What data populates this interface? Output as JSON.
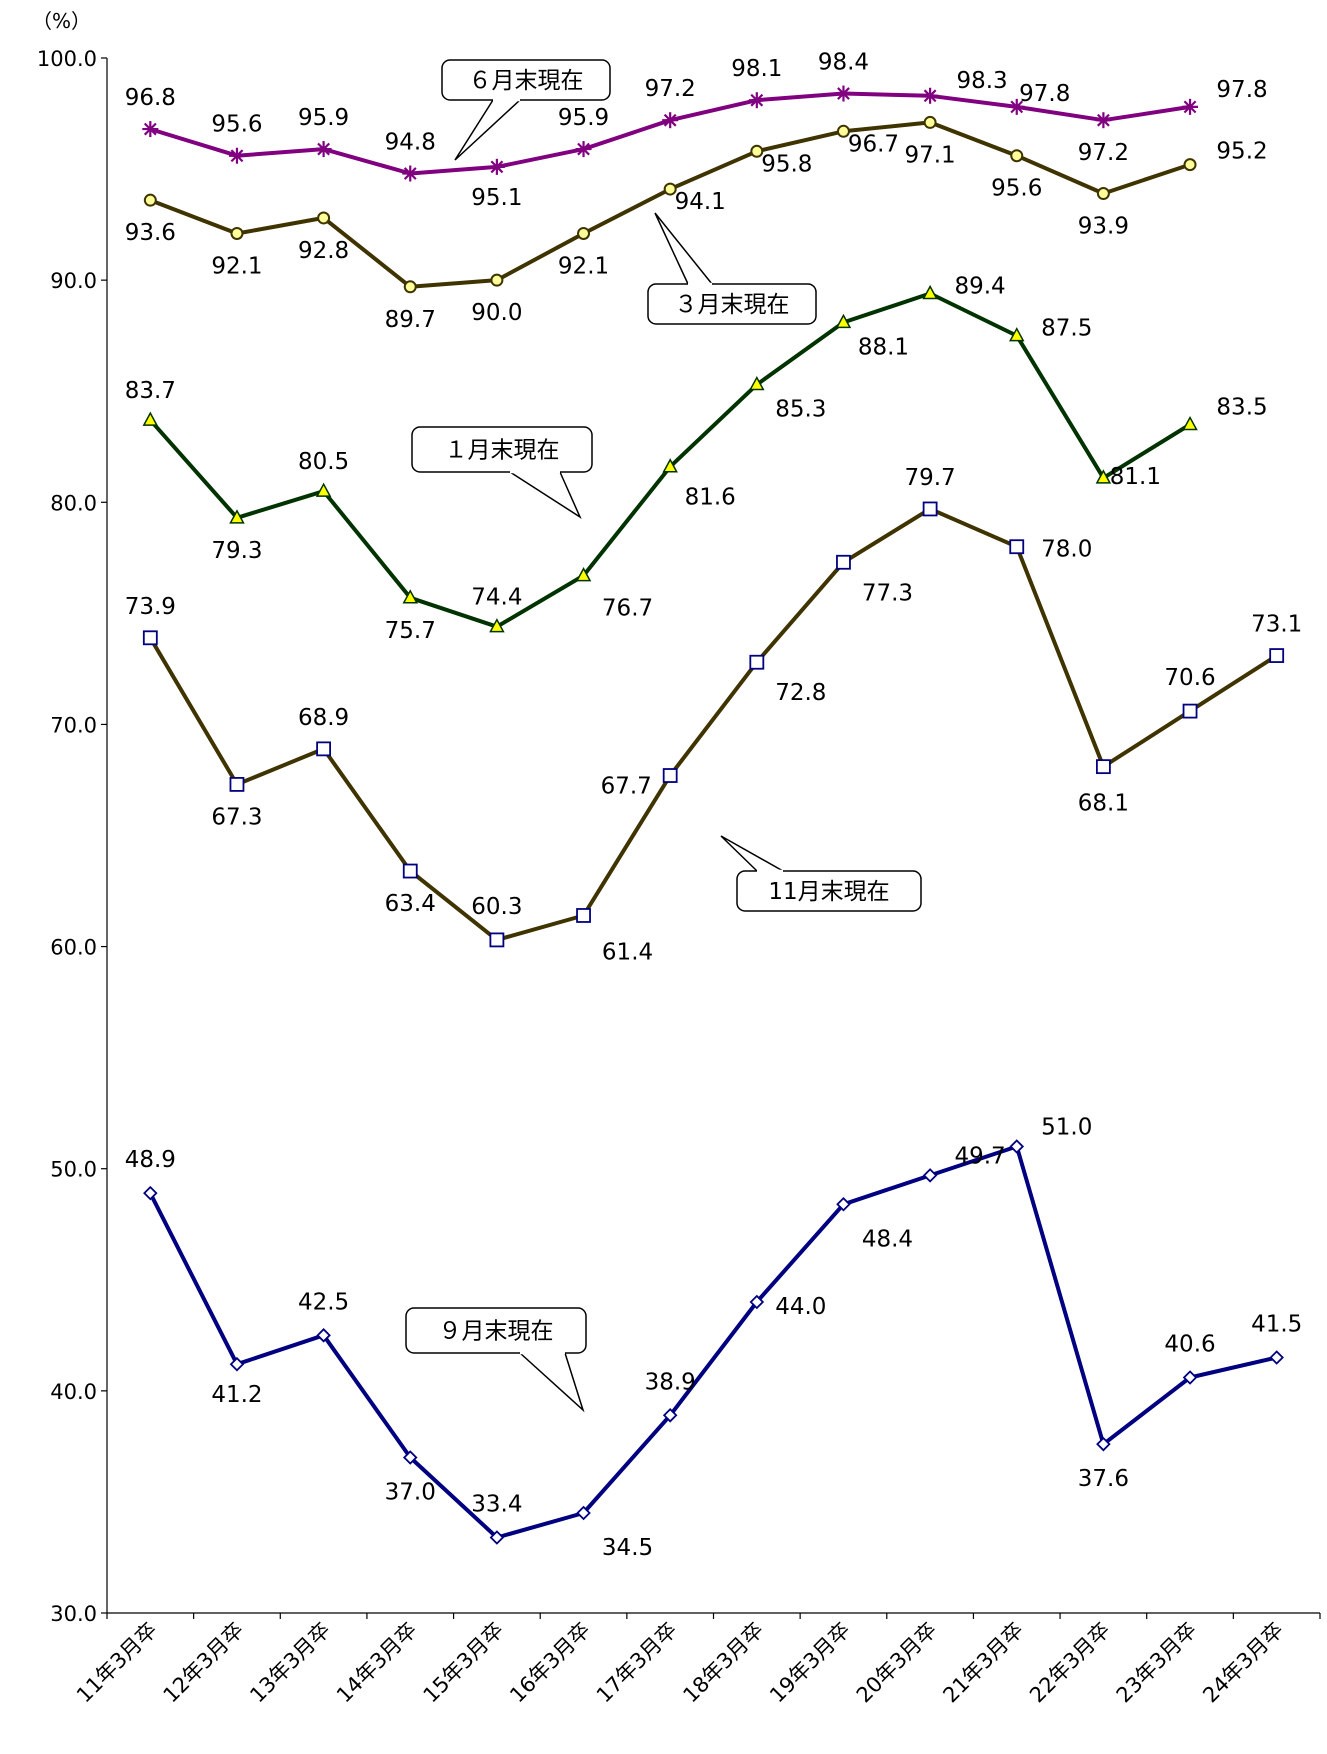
{
  "chart_data": {
    "type": "line",
    "y_unit": "（%）",
    "ylim": [
      30,
      100
    ],
    "y_ticks": [
      "30.0",
      "40.0",
      "50.0",
      "60.0",
      "70.0",
      "80.0",
      "90.0",
      "100.0"
    ],
    "categories": [
      "11年3月卒",
      "12年3月卒",
      "13年3月卒",
      "14年3月卒",
      "15年3月卒",
      "16年3月卒",
      "17年3月卒",
      "18年3月卒",
      "19年3月卒",
      "20年3月卒",
      "21年3月卒",
      "22年3月卒",
      "23年3月卒",
      "24年3月卒"
    ],
    "grid": false,
    "series": [
      {
        "name": "６月末現在",
        "color": "#800080",
        "marker": "asterisk",
        "values": [
          96.8,
          95.6,
          95.9,
          94.8,
          95.1,
          95.9,
          97.2,
          98.1,
          98.4,
          98.3,
          97.8,
          97.2,
          97.8,
          null
        ]
      },
      {
        "name": "３月末現在",
        "color": "#3f3300",
        "marker": "circle",
        "values": [
          93.6,
          92.1,
          92.8,
          89.7,
          90.0,
          92.1,
          94.1,
          95.8,
          96.7,
          97.1,
          95.6,
          93.9,
          95.2,
          null
        ]
      },
      {
        "name": "１月末現在",
        "color": "#003300",
        "marker": "triangle",
        "values": [
          83.7,
          79.3,
          80.5,
          75.7,
          74.4,
          76.7,
          81.6,
          85.3,
          88.1,
          89.4,
          87.5,
          81.1,
          83.5,
          null
        ]
      },
      {
        "name": "11月末現在",
        "color": "#3f3300",
        "marker": "square",
        "values": [
          73.9,
          67.3,
          68.9,
          63.4,
          60.3,
          61.4,
          67.7,
          72.8,
          77.3,
          79.7,
          78.0,
          68.1,
          70.6,
          73.1
        ]
      },
      {
        "name": "９月末現在",
        "color": "#000080",
        "marker": "diamond",
        "values": [
          48.9,
          41.2,
          42.5,
          37.0,
          33.4,
          34.5,
          38.9,
          44.0,
          48.4,
          49.7,
          51.0,
          37.6,
          40.6,
          41.5
        ]
      }
    ]
  }
}
